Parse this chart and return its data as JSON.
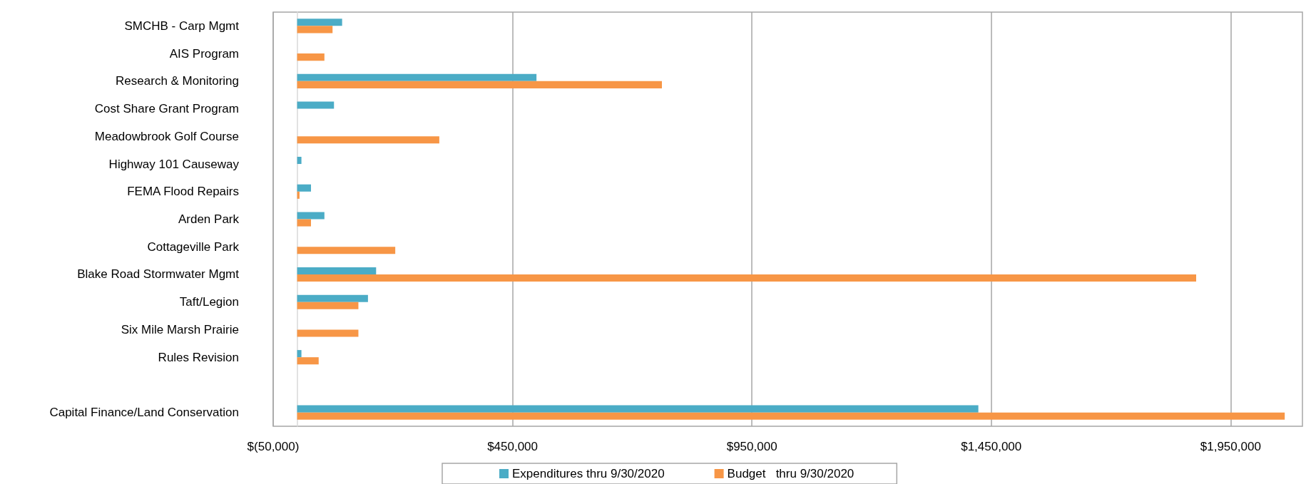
{
  "chart_data": {
    "type": "bar",
    "orientation": "horizontal",
    "categories": [
      "SMCHB - Carp Mgmt",
      "AIS Program",
      "Research & Monitoring",
      "Cost Share Grant Program",
      "Meadowbrook Golf Course",
      "Highway 101 Causeway",
      "FEMA Flood Repairs",
      "Arden Park",
      "Cottageville Park",
      "Blake Road Stormwater Mgmt",
      "Taft/Legion",
      "Six Mile Marsh Prairie",
      "Rules Revision",
      null,
      "Capital Finance/Land Conservation"
    ],
    "series": [
      {
        "name": "Expenditures thru 9/30/2020",
        "color": "#4bacc6",
        "values": [
          94000,
          null,
          500000,
          77000,
          null,
          9000,
          29000,
          57000,
          null,
          165000,
          148000,
          null,
          9000,
          null,
          1423000
        ]
      },
      {
        "name": "Budget   thru 9/30/2020",
        "color": "#f79646",
        "values": [
          74000,
          57000,
          762000,
          null,
          297000,
          null,
          5000,
          29000,
          205000,
          1878000,
          128000,
          128000,
          45000,
          null,
          2063000
        ]
      }
    ],
    "xlim": [
      -50000,
      2100000
    ],
    "xticks": [
      {
        "value": -50000,
        "label": "$(50,000)"
      },
      {
        "value": 450000,
        "label": "$450,000"
      },
      {
        "value": 950000,
        "label": "$950,000"
      },
      {
        "value": 1450000,
        "label": "$1,450,000"
      },
      {
        "value": 1950000,
        "label": "$1,950,000"
      }
    ],
    "grid": "x",
    "legend": "bottom"
  }
}
